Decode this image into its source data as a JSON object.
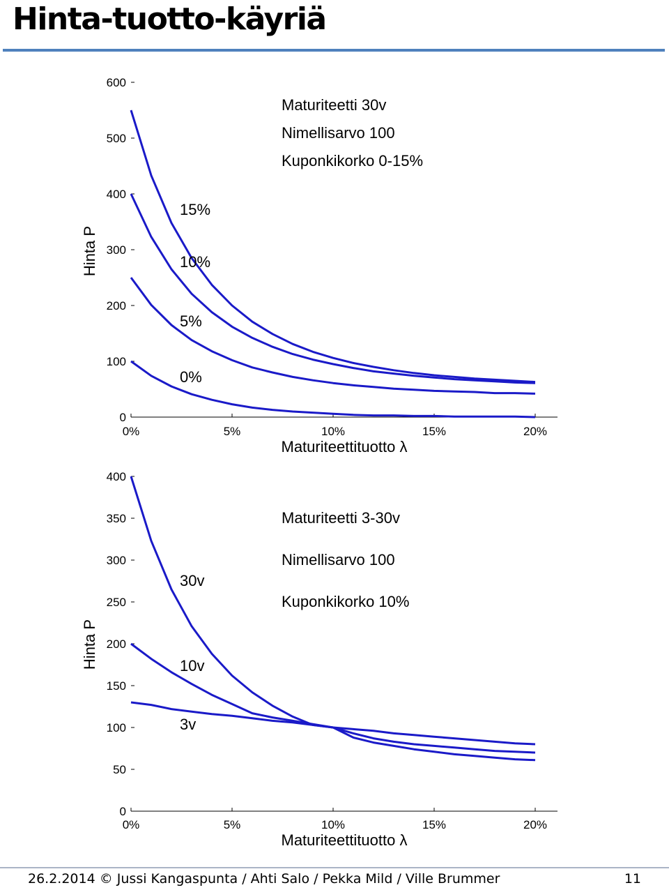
{
  "slide": {
    "title": "Hinta-tuotto-käyriä",
    "accent_color": "#4f81bd",
    "footer_rule_color": "#aab4c6",
    "footer": "26.2.2014 © Jussi Kangaspunta / Ahti Salo / Pekka Mild / Ville Brummer",
    "page_number": "11"
  },
  "chart_data": [
    {
      "type": "line",
      "xlabel": "Maturiteettituotto λ",
      "ylabel": "Hinta P",
      "xlim": [
        0,
        20
      ],
      "ylim": [
        0,
        600
      ],
      "x_ticks": [
        0,
        5,
        10,
        15,
        20
      ],
      "x_tick_labels": [
        "0%",
        "5%",
        "10%",
        "15%",
        "20%"
      ],
      "y_ticks": [
        0,
        100,
        200,
        300,
        400,
        500,
        600
      ],
      "y_tick_labels": [
        "0",
        "100",
        "200",
        "300",
        "400",
        "500",
        "600"
      ],
      "grid": false,
      "line_color": "#1a1ac8",
      "annotations": [
        "Maturiteetti 30v",
        "Nimellisarvo 100",
        "Kuponkikorko 0-15%"
      ],
      "series": [
        {
          "name": "15%",
          "x": [
            0,
            1,
            2,
            3,
            4,
            5,
            6,
            7,
            8,
            9,
            10,
            11,
            12,
            13,
            14,
            15,
            16,
            17,
            18,
            19,
            20
          ],
          "y": [
            550,
            433,
            348,
            285,
            237,
            200,
            171,
            149,
            131,
            117,
            106,
            97,
            90,
            84,
            79,
            75,
            72,
            69,
            67,
            65,
            63
          ]
        },
        {
          "name": "10%",
          "x": [
            0,
            1,
            2,
            3,
            4,
            5,
            6,
            7,
            8,
            9,
            10,
            11,
            12,
            13,
            14,
            15,
            16,
            17,
            18,
            19,
            20
          ],
          "y": [
            400,
            323,
            265,
            221,
            188,
            162,
            142,
            126,
            113,
            103,
            95,
            88,
            82,
            78,
            74,
            71,
            68,
            66,
            64,
            62,
            61
          ]
        },
        {
          "name": "5%",
          "x": [
            0,
            1,
            2,
            3,
            4,
            5,
            6,
            7,
            8,
            9,
            10,
            11,
            12,
            13,
            14,
            15,
            16,
            17,
            18,
            19,
            20
          ],
          "y": [
            250,
            201,
            165,
            138,
            118,
            102,
            89,
            80,
            72,
            66,
            61,
            57,
            54,
            51,
            49,
            47,
            46,
            45,
            43,
            43,
            42
          ]
        },
        {
          "name": "0%",
          "x": [
            0,
            1,
            2,
            3,
            4,
            5,
            6,
            7,
            8,
            9,
            10,
            11,
            12,
            13,
            14,
            15,
            16,
            17,
            18,
            19,
            20
          ],
          "y": [
            100,
            74,
            55,
            41,
            31,
            23,
            17,
            13,
            10,
            8,
            6,
            4,
            3,
            3,
            2,
            2,
            1,
            1,
            1,
            1,
            0
          ]
        }
      ]
    },
    {
      "type": "line",
      "xlabel": "Maturiteettituotto λ",
      "ylabel": "Hinta P",
      "xlim": [
        0,
        20
      ],
      "ylim": [
        0,
        400
      ],
      "x_ticks": [
        0,
        5,
        10,
        15,
        20
      ],
      "x_tick_labels": [
        "0%",
        "5%",
        "10%",
        "15%",
        "20%"
      ],
      "y_ticks": [
        0,
        50,
        100,
        150,
        200,
        250,
        300,
        350,
        400
      ],
      "y_tick_labels": [
        "0",
        "50",
        "100",
        "150",
        "200",
        "250",
        "300",
        "350",
        "400"
      ],
      "grid": false,
      "line_color": "#1a1ac8",
      "annotations": [
        "Maturiteetti 3-30v",
        "Nimellisarvo 100",
        "Kuponkikorko 10%"
      ],
      "series": [
        {
          "name": "30v",
          "x": [
            0,
            1,
            2,
            3,
            4,
            5,
            6,
            7,
            8,
            9,
            10,
            11,
            12,
            13,
            14,
            15,
            16,
            17,
            18,
            19,
            20
          ],
          "y": [
            400,
            323,
            265,
            221,
            188,
            162,
            142,
            126,
            113,
            103,
            100,
            88,
            82,
            78,
            74,
            71,
            68,
            66,
            64,
            62,
            61
          ]
        },
        {
          "name": "10v",
          "x": [
            0,
            1,
            2,
            3,
            4,
            5,
            6,
            7,
            8,
            9,
            10,
            11,
            12,
            13,
            14,
            15,
            16,
            17,
            18,
            19,
            20
          ],
          "y": [
            200,
            182,
            166,
            152,
            139,
            128,
            117,
            112,
            108,
            104,
            100,
            93,
            87,
            83,
            80,
            78,
            76,
            74,
            72,
            71,
            70
          ]
        },
        {
          "name": "3v",
          "x": [
            0,
            1,
            2,
            3,
            4,
            5,
            6,
            7,
            8,
            9,
            10,
            11,
            12,
            13,
            14,
            15,
            16,
            17,
            18,
            19,
            20
          ],
          "y": [
            130,
            127,
            122,
            119,
            116,
            114,
            111,
            108,
            106,
            103,
            100,
            98,
            96,
            93,
            91,
            89,
            87,
            85,
            83,
            81,
            80
          ]
        }
      ]
    }
  ]
}
